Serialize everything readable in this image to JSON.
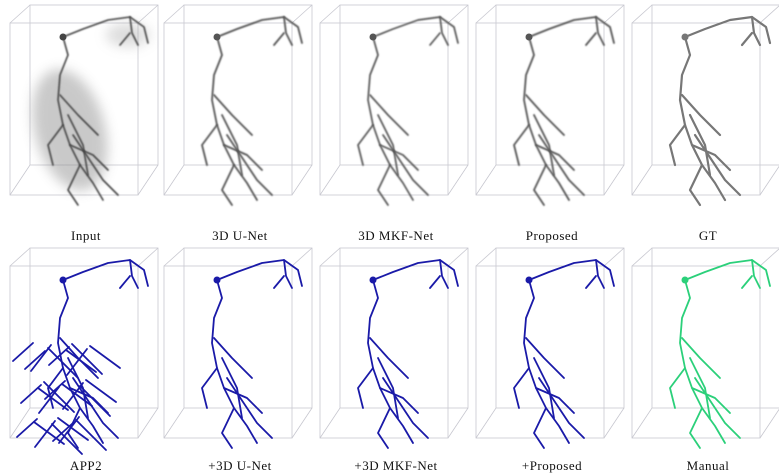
{
  "top_row": [
    "Input",
    "3D U-Net",
    "3D MKF-Net",
    "Proposed",
    "GT"
  ],
  "bottom_row": [
    "APP2",
    "+3D U-Net",
    "+3D MKF-Net",
    "+Proposed",
    "Manual"
  ]
}
